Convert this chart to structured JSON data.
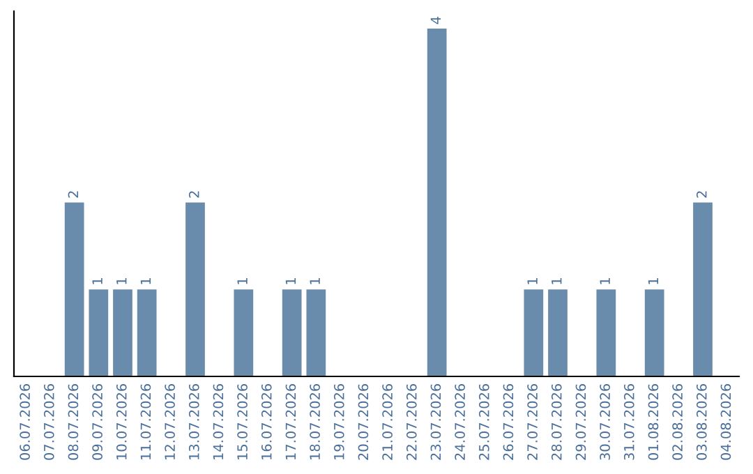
{
  "chart_data": {
    "type": "bar",
    "categories": [
      "06.07.2026",
      "07.07.2026",
      "08.07.2026",
      "09.07.2026",
      "10.07.2026",
      "11.07.2026",
      "12.07.2026",
      "13.07.2026",
      "14.07.2026",
      "15.07.2026",
      "16.07.2026",
      "17.07.2026",
      "18.07.2026",
      "19.07.2026",
      "20.07.2026",
      "21.07.2026",
      "22.07.2026",
      "23.07.2026",
      "24.07.2026",
      "25.07.2026",
      "26.07.2026",
      "27.07.2026",
      "28.07.2026",
      "29.07.2026",
      "30.07.2026",
      "31.07.2026",
      "01.08.2026",
      "02.08.2026",
      "03.08.2026",
      "04.08.2026"
    ],
    "values": [
      0,
      0,
      2,
      1,
      1,
      1,
      0,
      2,
      0,
      1,
      0,
      1,
      1,
      0,
      0,
      0,
      0,
      4,
      0,
      0,
      0,
      1,
      1,
      0,
      1,
      0,
      1,
      0,
      2,
      0
    ],
    "value_labels": [
      null,
      null,
      "2",
      "1",
      "1",
      "1",
      null,
      "2",
      null,
      "1",
      null,
      "1",
      "1",
      null,
      null,
      null,
      null,
      "4",
      null,
      null,
      null,
      "1",
      "1",
      null,
      "1",
      null,
      "1",
      null,
      "2",
      null
    ],
    "color": "#6a8cac",
    "grid": false,
    "legend": false,
    "tick_labels": "x"
  }
}
